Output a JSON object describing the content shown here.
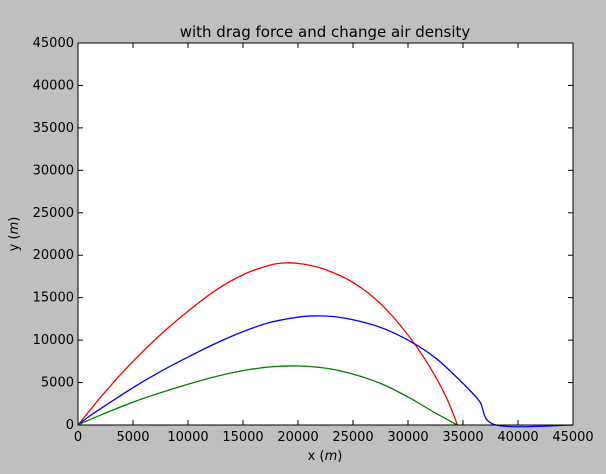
{
  "chart_data": {
    "type": "line",
    "title": "with drag force and change air density",
    "xlabel": "x",
    "xlabel_unit": "m",
    "ylabel": "y",
    "ylabel_unit": "m",
    "xlim": [
      0,
      45000
    ],
    "ylim": [
      0,
      45000
    ],
    "xticks": [
      0,
      5000,
      10000,
      15000,
      20000,
      25000,
      30000,
      35000,
      40000,
      45000
    ],
    "yticks": [
      0,
      5000,
      10000,
      15000,
      20000,
      25000,
      30000,
      35000,
      40000,
      45000
    ],
    "grid": false,
    "legend": "none",
    "background_color": "#bfbfbf",
    "plot_color": "#ffffff",
    "series": [
      {
        "color": "#ff0000",
        "x": [
          0,
          1000,
          2500,
          5000,
          7500,
          10000,
          12500,
          15000,
          17500,
          19000,
          20500,
          22500,
          25000,
          27500,
          30000,
          32000,
          33500,
          34500
        ],
        "y": [
          0,
          1600,
          3950,
          7500,
          10650,
          13400,
          15850,
          17700,
          18850,
          19100,
          18950,
          18300,
          16800,
          14300,
          10600,
          6800,
          3200,
          0
        ]
      },
      {
        "color": "#0000ff",
        "x": [
          0,
          1000,
          2500,
          5000,
          7500,
          10000,
          12500,
          15000,
          17500,
          20000,
          21500,
          23000,
          25000,
          27500,
          30000,
          32500,
          35000,
          36500,
          38000,
          45000
        ],
        "y": [
          0,
          1000,
          2300,
          4400,
          6300,
          8000,
          9600,
          11000,
          12100,
          12700,
          12850,
          12800,
          12400,
          11500,
          10000,
          7900,
          4900,
          2800,
          0,
          0
        ]
      },
      {
        "color": "#008000",
        "x": [
          0,
          1000,
          2500,
          5000,
          7500,
          10000,
          12500,
          15000,
          17500,
          20000,
          22500,
          25000,
          27500,
          30000,
          32500,
          34500
        ],
        "y": [
          0,
          600,
          1400,
          2700,
          3800,
          4800,
          5700,
          6400,
          6850,
          6950,
          6700,
          6000,
          4900,
          3300,
          1400,
          0
        ]
      }
    ]
  }
}
